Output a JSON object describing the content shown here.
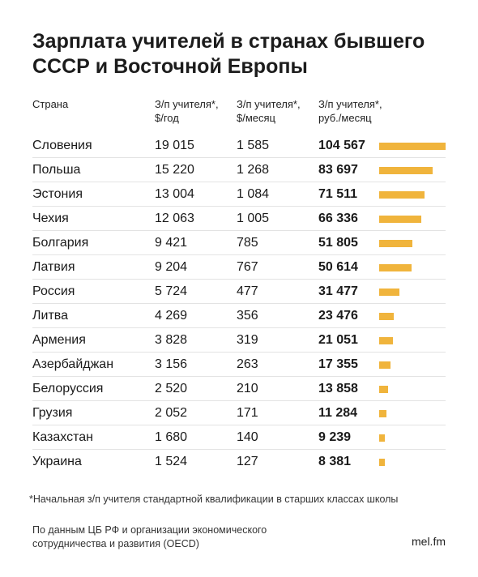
{
  "title": "Зарплата учителей в странах бывшего СССР и Восточной Европы",
  "headers": {
    "country": "Страна",
    "usd_year": "З/п учителя*,\n$/год",
    "usd_month": "З/п учителя*,\n$/месяц",
    "rub_month": "З/п учителя*,\nруб./месяц"
  },
  "bar_color": "#f0b43c",
  "chart_data": {
    "type": "table",
    "columns": [
      "Страна",
      "З/п учителя*, $/год",
      "З/п учителя*, $/месяц",
      "З/п учителя*, руб./месяц"
    ],
    "rows": [
      {
        "country": "Словения",
        "usd_year": "19 015",
        "usd_month": "1 585",
        "rub_month": "104 567",
        "value": 104567
      },
      {
        "country": "Польша",
        "usd_year": "15 220",
        "usd_month": "1 268",
        "rub_month": "83 697",
        "value": 83697
      },
      {
        "country": "Эстония",
        "usd_year": "13 004",
        "usd_month": "1 084",
        "rub_month": "71 511",
        "value": 71511
      },
      {
        "country": "Чехия",
        "usd_year": "12 063",
        "usd_month": "1 005",
        "rub_month": "66 336",
        "value": 66336
      },
      {
        "country": "Болгария",
        "usd_year": "9 421",
        "usd_month": "785",
        "rub_month": "51 805",
        "value": 51805
      },
      {
        "country": "Латвия",
        "usd_year": "9 204",
        "usd_month": "767",
        "rub_month": "50 614",
        "value": 50614
      },
      {
        "country": "Россия",
        "usd_year": "5 724",
        "usd_month": "477",
        "rub_month": "31 477",
        "value": 31477
      },
      {
        "country": "Литва",
        "usd_year": "4 269",
        "usd_month": "356",
        "rub_month": "23 476",
        "value": 23476
      },
      {
        "country": "Армения",
        "usd_year": "3 828",
        "usd_month": "319",
        "rub_month": "21 051",
        "value": 21051
      },
      {
        "country": "Азербайджан",
        "usd_year": "3 156",
        "usd_month": "263",
        "rub_month": "17 355",
        "value": 17355
      },
      {
        "country": "Белоруссия",
        "usd_year": "2 520",
        "usd_month": "210",
        "rub_month": "13 858",
        "value": 13858
      },
      {
        "country": "Грузия",
        "usd_year": "2 052",
        "usd_month": "171",
        "rub_month": "11 284",
        "value": 11284
      },
      {
        "country": "Казахстан",
        "usd_year": "1 680",
        "usd_month": "140",
        "rub_month": "9 239",
        "value": 9239
      },
      {
        "country": "Украина",
        "usd_year": "1 524",
        "usd_month": "127",
        "rub_month": "8 381",
        "value": 8381
      }
    ]
  },
  "footnote": "*Начальная з/п учителя стандартной квалификации в старших классах школы",
  "source": "По данным ЦБ РФ и организации экономического сотрудничества и развития (OECD)",
  "brand": "mel.fm"
}
